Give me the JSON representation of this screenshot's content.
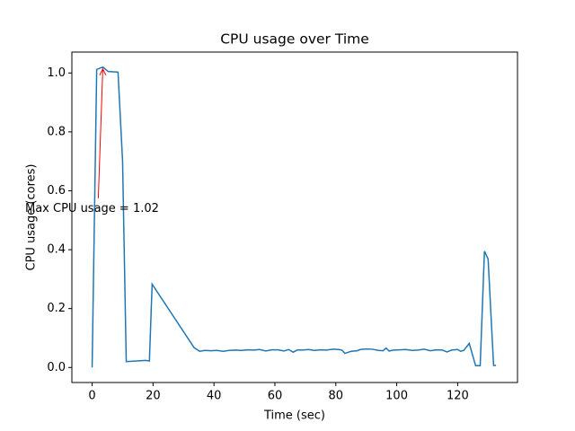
{
  "chart_data": {
    "type": "line",
    "title": "CPU usage over Time",
    "x_label": "Time (sec)",
    "y_label": "CPU usage (cores)",
    "x": [
      0,
      1.5,
      3.5,
      5.3,
      8.5,
      10,
      11.2,
      17.6,
      18.8,
      19.7,
      33.5,
      35.3,
      37,
      39,
      41,
      43,
      45,
      47,
      49,
      51,
      53,
      55,
      57,
      59,
      61,
      63,
      64.5,
      66,
      67.5,
      69,
      71,
      73,
      75,
      77,
      79,
      81,
      82,
      83,
      85,
      87,
      88,
      90,
      92,
      94,
      95.5,
      96.5,
      97.5,
      99,
      101,
      103,
      105,
      107,
      109,
      111,
      113,
      115,
      116.5,
      118,
      120,
      121,
      122,
      123.8,
      125.9,
      127.4,
      128.8,
      130,
      131.8,
      132.6
    ],
    "series": [
      {
        "color": "#1f77b4",
        "values": [
          0,
          1.012,
          1.02,
          1.005,
          1.003,
          0.7,
          0.02,
          0.024,
          0.022,
          0.283,
          0.067,
          0.055,
          0.058,
          0.057,
          0.058,
          0.055,
          0.058,
          0.059,
          0.058,
          0.06,
          0.059,
          0.061,
          0.056,
          0.06,
          0.06,
          0.056,
          0.061,
          0.052,
          0.06,
          0.059,
          0.061,
          0.058,
          0.06,
          0.059,
          0.062,
          0.061,
          0.059,
          0.048,
          0.055,
          0.057,
          0.061,
          0.063,
          0.062,
          0.058,
          0.057,
          0.066,
          0.056,
          0.059,
          0.06,
          0.061,
          0.058,
          0.059,
          0.062,
          0.057,
          0.06,
          0.059,
          0.053,
          0.059,
          0.061,
          0.055,
          0.058,
          0.082,
          0.006,
          0.006,
          0.395,
          0.368,
          0.007,
          0.007
        ]
      }
    ],
    "xlim": [
      -6.65,
      139.65
    ],
    "xticks": [
      0,
      20,
      40,
      60,
      80,
      100,
      120
    ],
    "ylim": [
      -0.051,
      1.071
    ],
    "yticks": [
      {
        "value": 0,
        "label": "0.0"
      },
      0.2,
      0.4,
      0.6,
      0.8,
      {
        "value": 1,
        "label": "1.0"
      }
    ],
    "annotation": {
      "text": "Max CPU usage = 1.02",
      "xy": [
        3.5,
        1.02
      ],
      "color": "red"
    }
  }
}
